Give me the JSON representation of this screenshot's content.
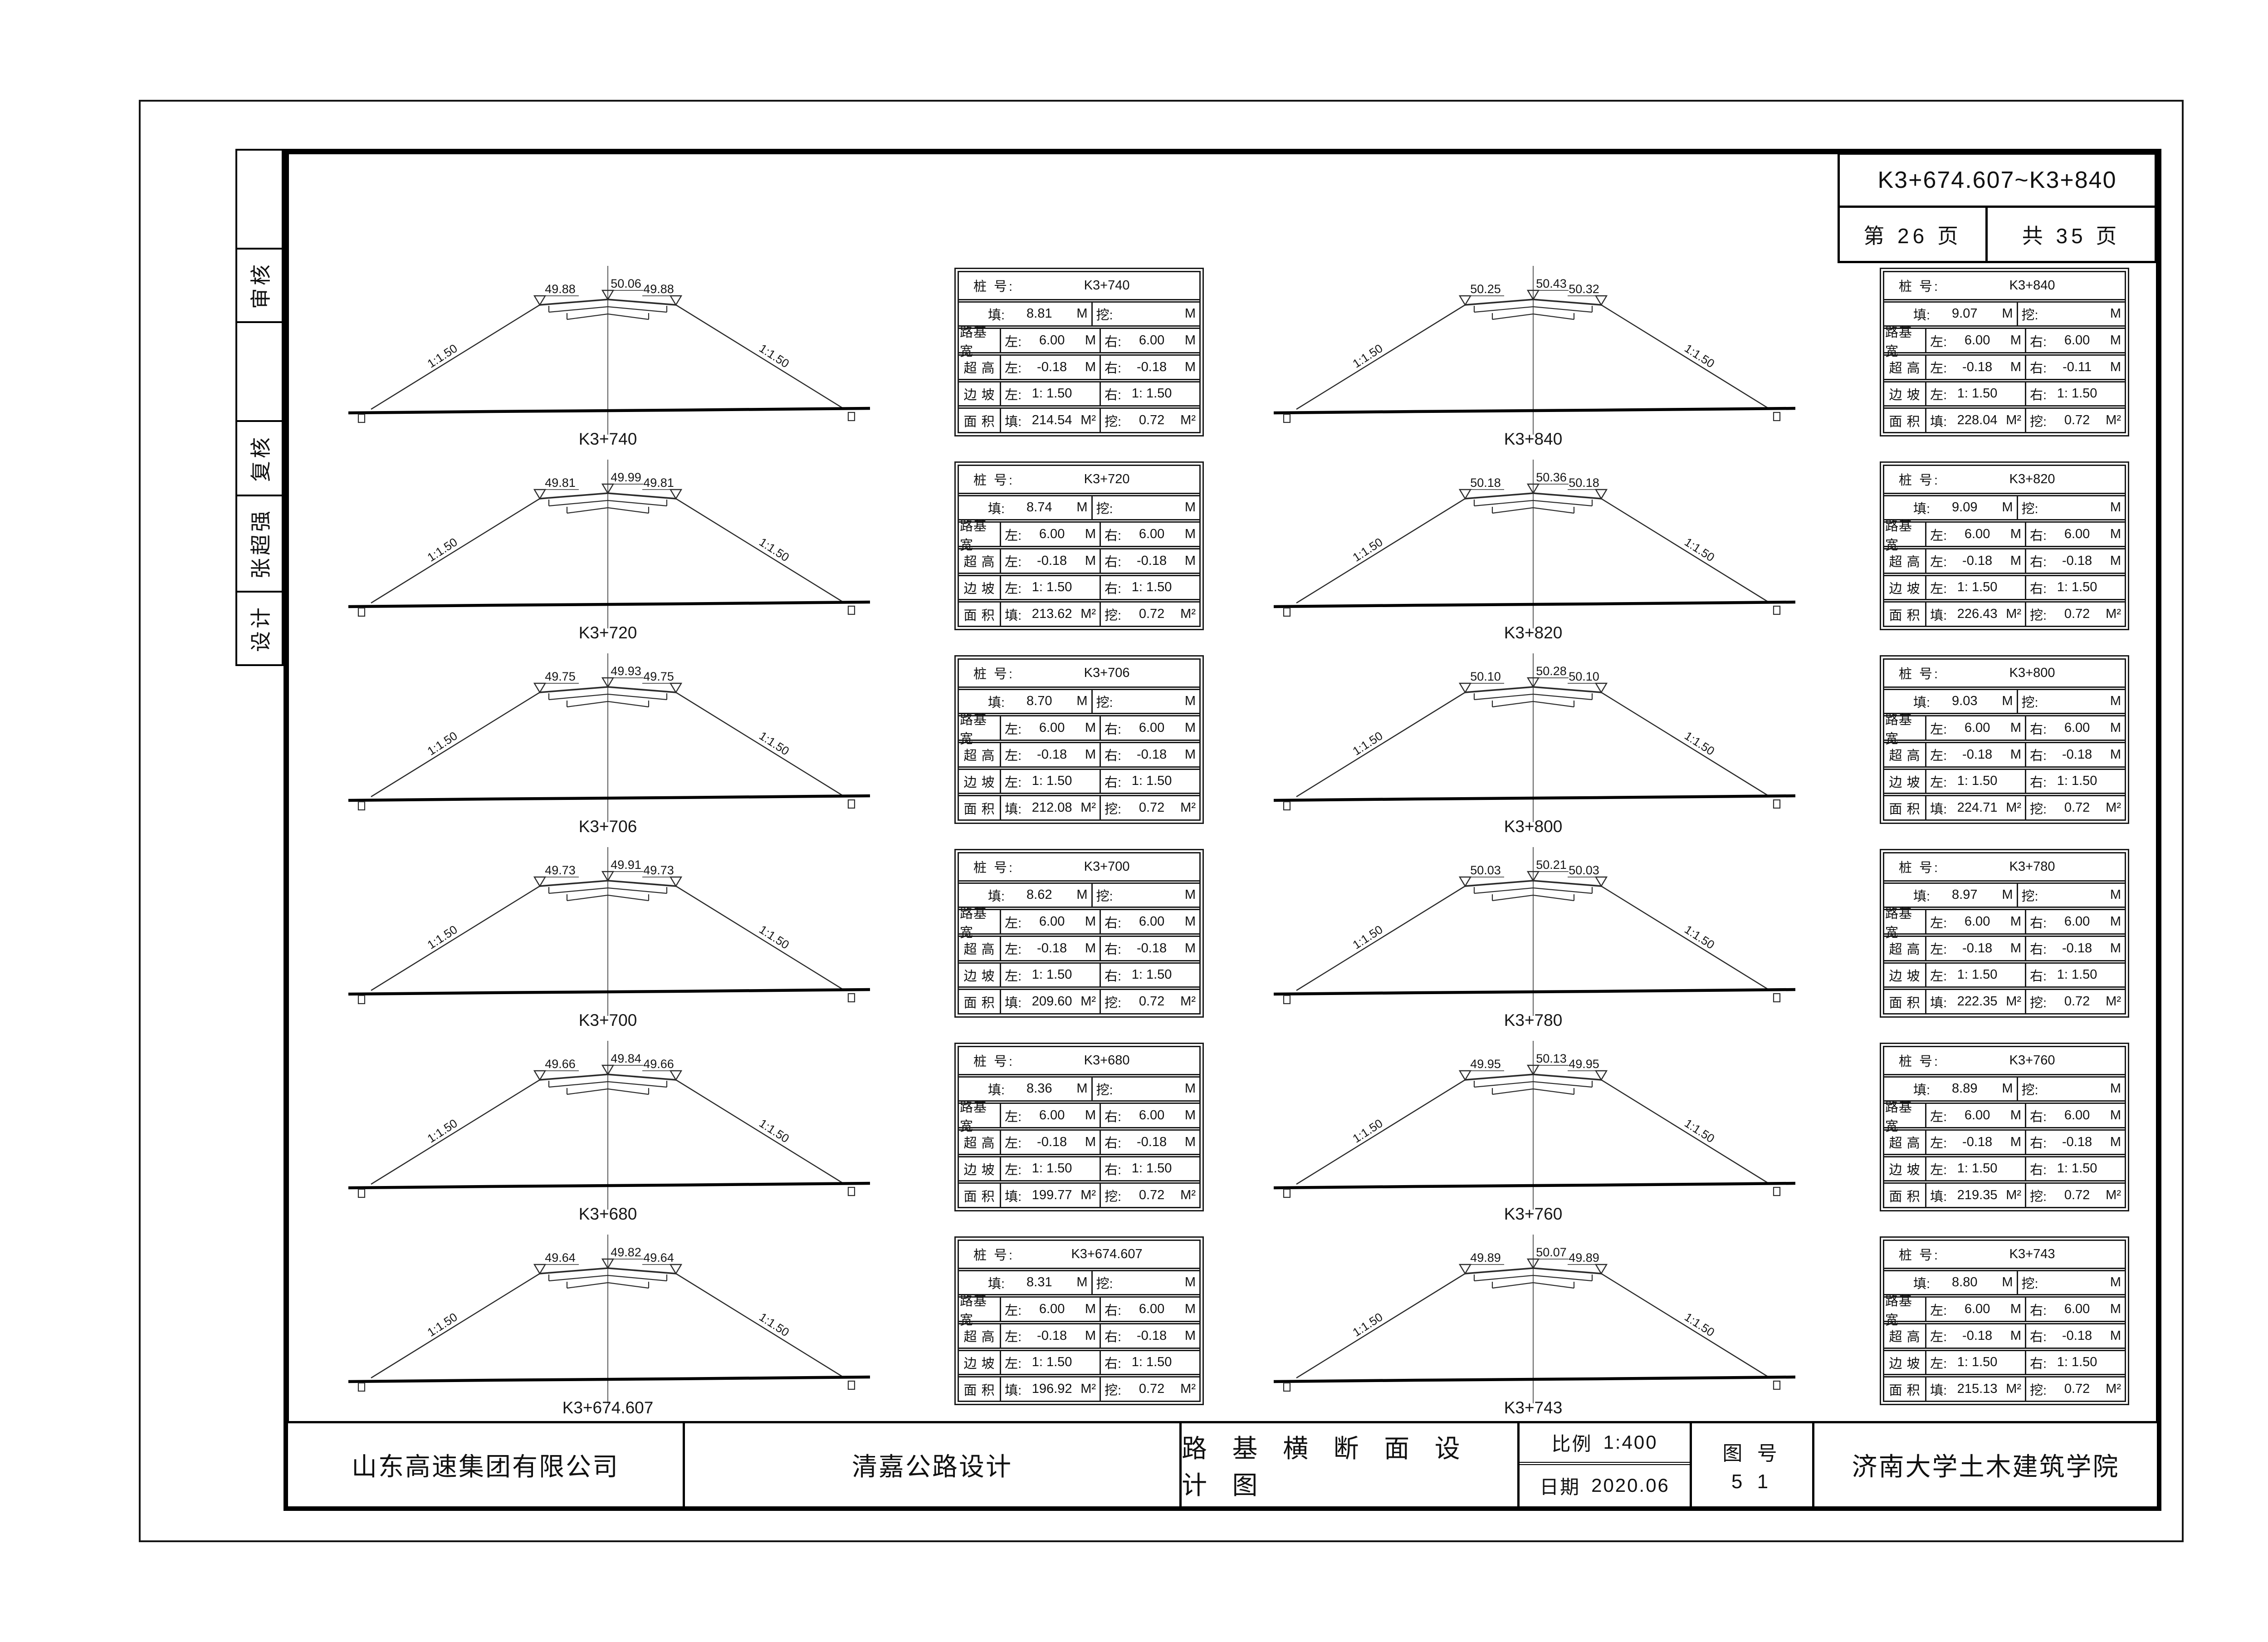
{
  "header": {
    "station_range": "K3+674.607~K3+840",
    "page_current": "第 26 页",
    "page_total": "共 35 页"
  },
  "margin_cells": [
    "",
    "审核",
    "",
    "复核",
    "张超强",
    "设计"
  ],
  "table_labels": {
    "station": "桩 号:",
    "fill": "填:",
    "cut": "挖:",
    "roadbed_width": "路基宽",
    "superelevation": "超 高",
    "side_slope": "边 坡",
    "area": "面 积",
    "left": "左:",
    "right": "右:",
    "unit_m": "M",
    "unit_m2": "M²"
  },
  "sections_left": [
    {
      "station": "K3+740",
      "elev_left": "49.88",
      "elev_center": "50.06",
      "elev_right": "49.88",
      "slope_note": "1:1.50",
      "fill": "8.81",
      "cut": "",
      "width_left": "6.00",
      "width_right": "6.00",
      "super_left": "-0.18",
      "super_right": "-0.18",
      "slope_left": "1: 1.50",
      "slope_right": "1: 1.50",
      "area_fill": "214.54",
      "area_cut": "0.72"
    },
    {
      "station": "K3+720",
      "elev_left": "49.81",
      "elev_center": "49.99",
      "elev_right": "49.81",
      "slope_note": "1:1.50",
      "fill": "8.74",
      "cut": "",
      "width_left": "6.00",
      "width_right": "6.00",
      "super_left": "-0.18",
      "super_right": "-0.18",
      "slope_left": "1: 1.50",
      "slope_right": "1: 1.50",
      "area_fill": "213.62",
      "area_cut": "0.72"
    },
    {
      "station": "K3+706",
      "elev_left": "49.75",
      "elev_center": "49.93",
      "elev_right": "49.75",
      "slope_note": "1:1.50",
      "fill": "8.70",
      "cut": "",
      "width_left": "6.00",
      "width_right": "6.00",
      "super_left": "-0.18",
      "super_right": "-0.18",
      "slope_left": "1: 1.50",
      "slope_right": "1: 1.50",
      "area_fill": "212.08",
      "area_cut": "0.72"
    },
    {
      "station": "K3+700",
      "elev_left": "49.73",
      "elev_center": "49.91",
      "elev_right": "49.73",
      "slope_note": "1:1.50",
      "fill": "8.62",
      "cut": "",
      "width_left": "6.00",
      "width_right": "6.00",
      "super_left": "-0.18",
      "super_right": "-0.18",
      "slope_left": "1: 1.50",
      "slope_right": "1: 1.50",
      "area_fill": "209.60",
      "area_cut": "0.72"
    },
    {
      "station": "K3+680",
      "elev_left": "49.66",
      "elev_center": "49.84",
      "elev_right": "49.66",
      "slope_note": "1:1.50",
      "fill": "8.36",
      "cut": "",
      "width_left": "6.00",
      "width_right": "6.00",
      "super_left": "-0.18",
      "super_right": "-0.18",
      "slope_left": "1: 1.50",
      "slope_right": "1: 1.50",
      "area_fill": "199.77",
      "area_cut": "0.72"
    },
    {
      "station": "K3+674.607",
      "elev_left": "49.64",
      "elev_center": "49.82",
      "elev_right": "49.64",
      "slope_note": "1:1.50",
      "fill": "8.31",
      "cut": "",
      "width_left": "6.00",
      "width_right": "6.00",
      "super_left": "-0.18",
      "super_right": "-0.18",
      "slope_left": "1: 1.50",
      "slope_right": "1: 1.50",
      "area_fill": "196.92",
      "area_cut": "0.72"
    }
  ],
  "sections_right": [
    {
      "station": "K3+840",
      "elev_left": "50.25",
      "elev_center": "50.43",
      "elev_right": "50.32",
      "slope_note": "1:1.50",
      "fill": "9.07",
      "cut": "",
      "width_left": "6.00",
      "width_right": "6.00",
      "super_left": "-0.18",
      "super_right": "-0.11",
      "slope_left": "1: 1.50",
      "slope_right": "1: 1.50",
      "area_fill": "228.04",
      "area_cut": "0.72"
    },
    {
      "station": "K3+820",
      "elev_left": "50.18",
      "elev_center": "50.36",
      "elev_right": "50.18",
      "slope_note": "1:1.50",
      "fill": "9.09",
      "cut": "",
      "width_left": "6.00",
      "width_right": "6.00",
      "super_left": "-0.18",
      "super_right": "-0.18",
      "slope_left": "1: 1.50",
      "slope_right": "1: 1.50",
      "area_fill": "226.43",
      "area_cut": "0.72"
    },
    {
      "station": "K3+800",
      "elev_left": "50.10",
      "elev_center": "50.28",
      "elev_right": "50.10",
      "slope_note": "1:1.50",
      "fill": "9.03",
      "cut": "",
      "width_left": "6.00",
      "width_right": "6.00",
      "super_left": "-0.18",
      "super_right": "-0.18",
      "slope_left": "1: 1.50",
      "slope_right": "1: 1.50",
      "area_fill": "224.71",
      "area_cut": "0.72"
    },
    {
      "station": "K3+780",
      "elev_left": "50.03",
      "elev_center": "50.21",
      "elev_right": "50.03",
      "slope_note": "1:1.50",
      "fill": "8.97",
      "cut": "",
      "width_left": "6.00",
      "width_right": "6.00",
      "super_left": "-0.18",
      "super_right": "-0.18",
      "slope_left": "1: 1.50",
      "slope_right": "1: 1.50",
      "area_fill": "222.35",
      "area_cut": "0.72"
    },
    {
      "station": "K3+760",
      "elev_left": "49.95",
      "elev_center": "50.13",
      "elev_right": "49.95",
      "slope_note": "1:1.50",
      "fill": "8.89",
      "cut": "",
      "width_left": "6.00",
      "width_right": "6.00",
      "super_left": "-0.18",
      "super_right": "-0.18",
      "slope_left": "1: 1.50",
      "slope_right": "1: 1.50",
      "area_fill": "219.35",
      "area_cut": "0.72"
    },
    {
      "station": "K3+743",
      "elev_left": "49.89",
      "elev_center": "50.07",
      "elev_right": "49.89",
      "slope_note": "1:1.50",
      "fill": "8.80",
      "cut": "",
      "width_left": "6.00",
      "width_right": "6.00",
      "super_left": "-0.18",
      "super_right": "-0.18",
      "slope_left": "1: 1.50",
      "slope_right": "1: 1.50",
      "area_fill": "215.13",
      "area_cut": "0.72"
    }
  ],
  "title_bar": {
    "company": "山东高速集团有限公司",
    "project": "清嘉公路设计",
    "drawing_title": "路 基 横 断 面 设 计 图",
    "scale_label": "比例",
    "scale_value": "1:400",
    "date_label": "日期",
    "date_value": "2020.06",
    "figure_label": "图 号",
    "figure_number": "5 1",
    "institute": "济南大学土木建筑学院"
  }
}
